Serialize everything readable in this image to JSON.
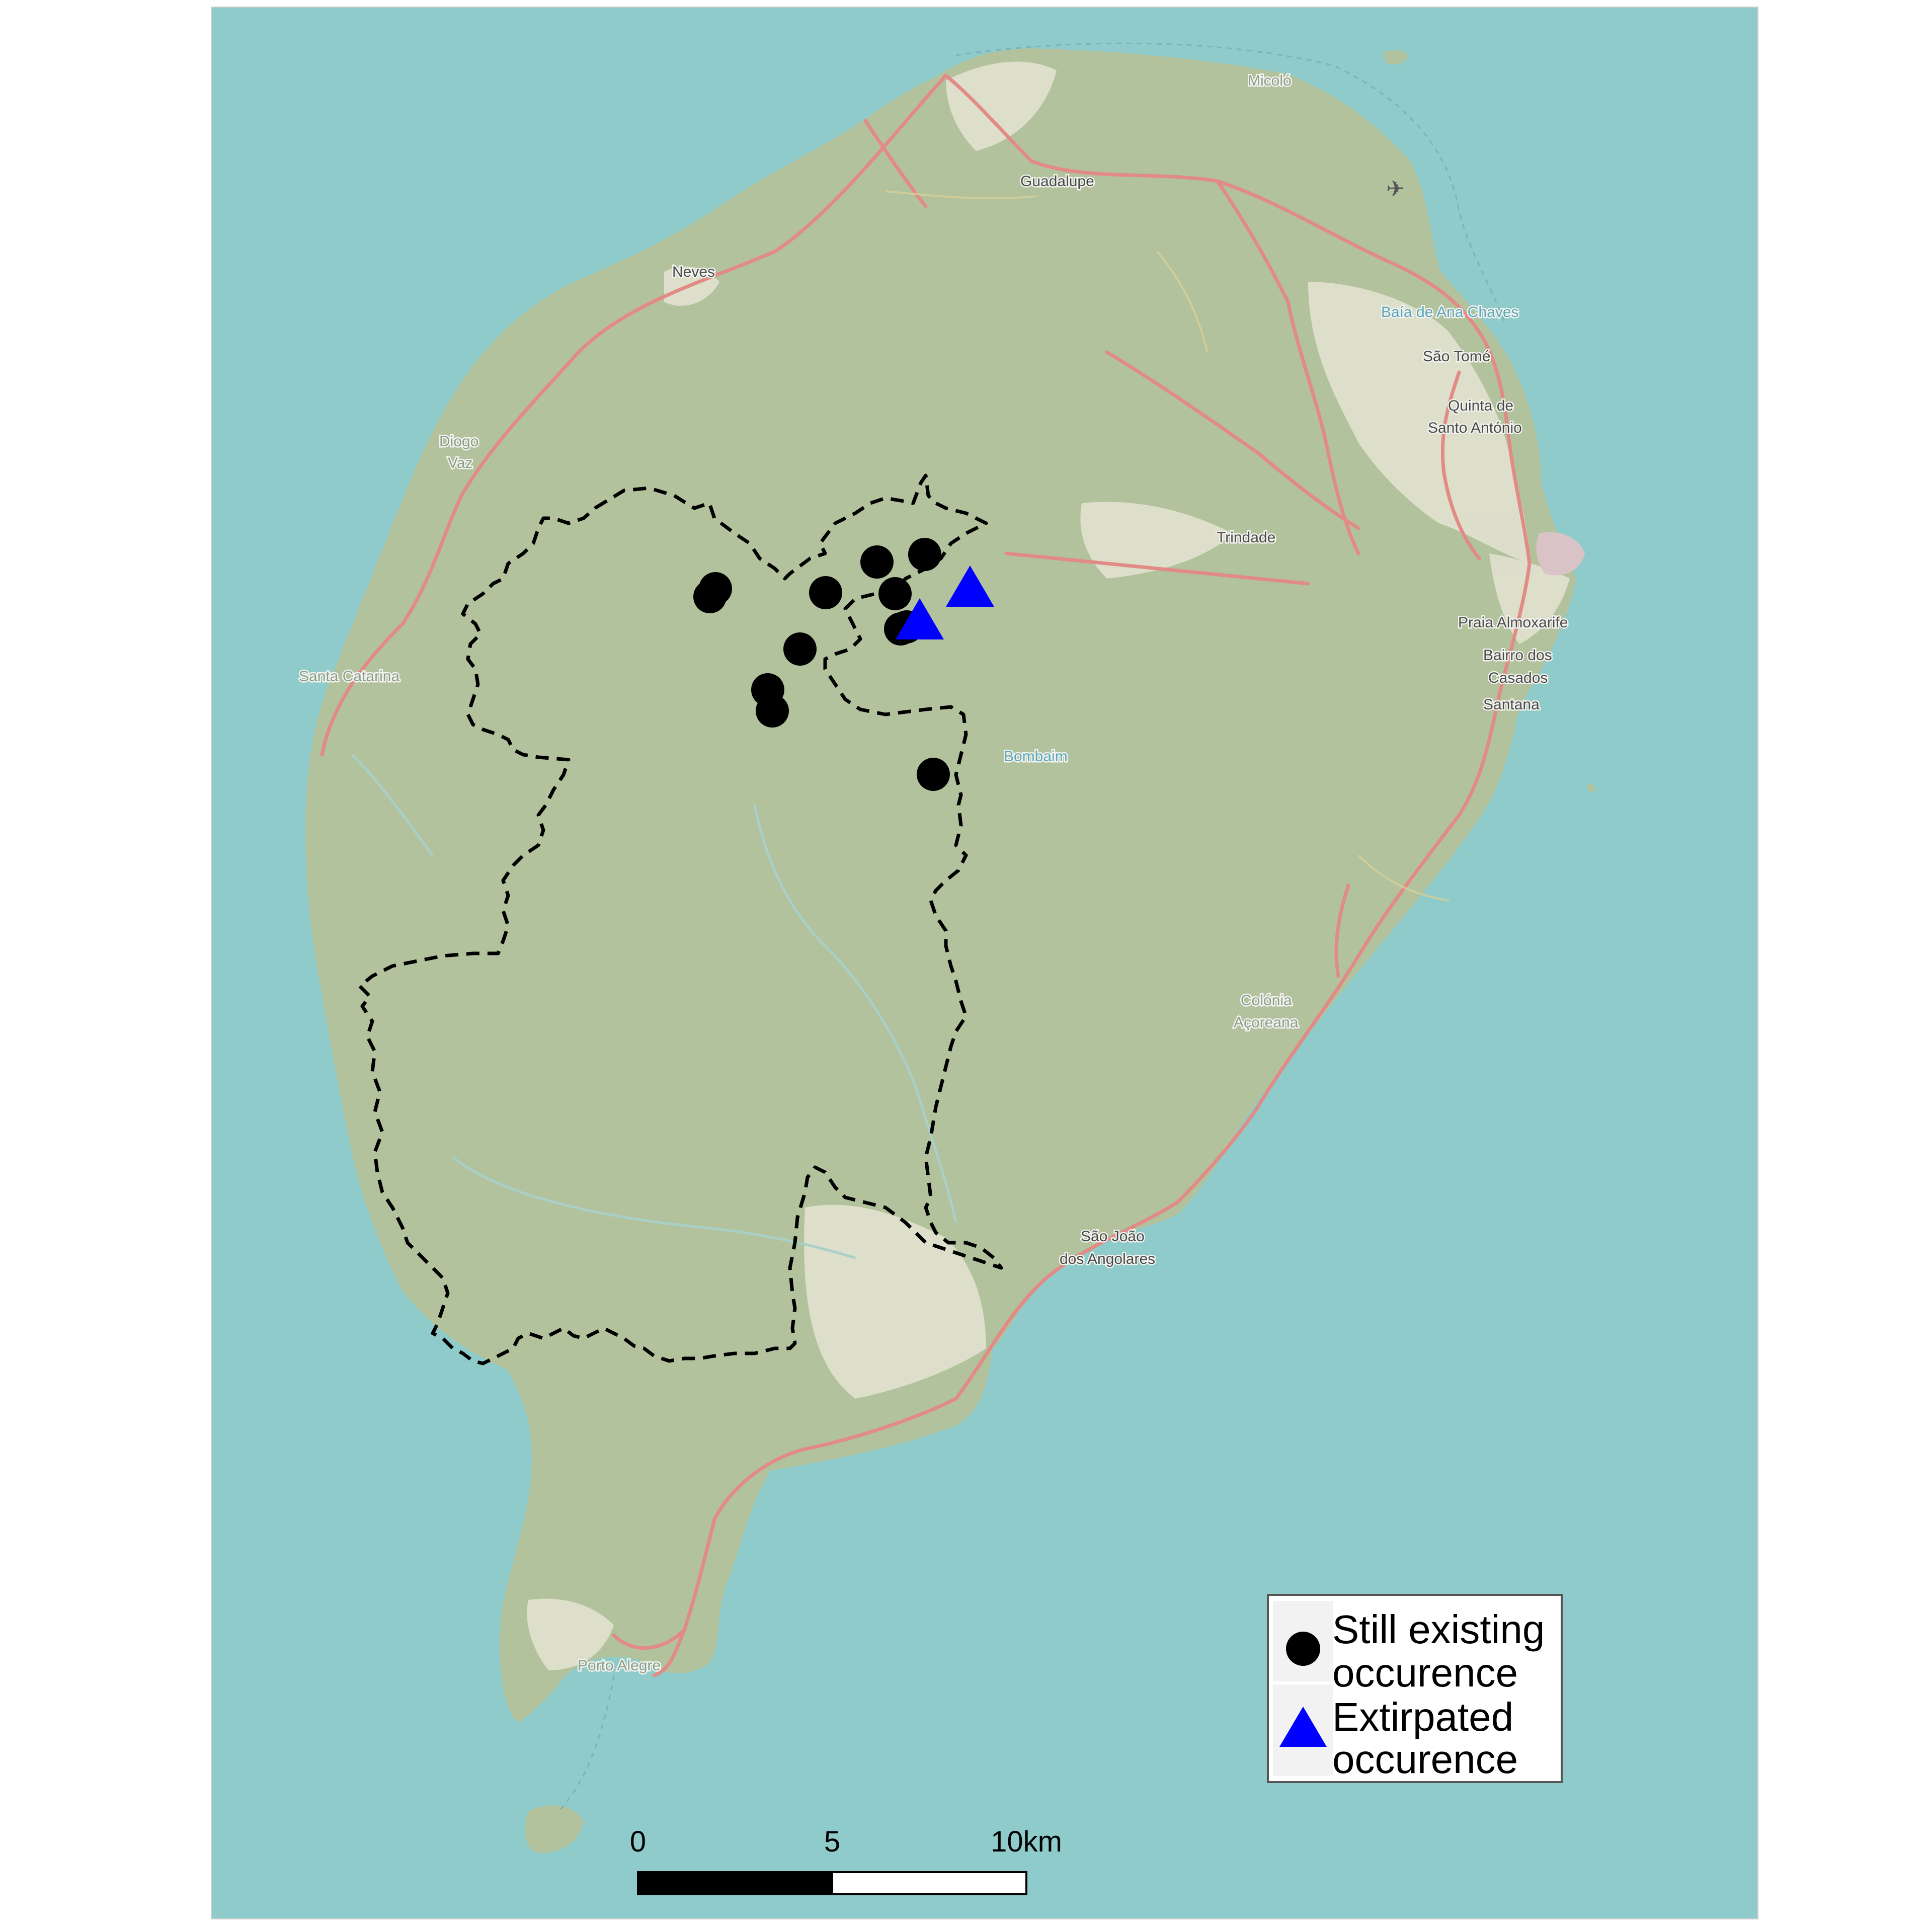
{
  "map": {
    "colors": {
      "sea": "#8fcbcb",
      "land": "#b2c29c",
      "urban": "#e8e4d8",
      "road": "#e28a85",
      "boundary": "#000000",
      "still_existing": "#000000",
      "extirpated": "#0000ff"
    },
    "place_labels": [
      {
        "id": "micolo",
        "text": "Micoló"
      },
      {
        "id": "guadalupe",
        "text": "Guadalupe"
      },
      {
        "id": "neves",
        "text": "Neves"
      },
      {
        "id": "baia",
        "text": "Baía de Ana Chaves"
      },
      {
        "id": "sao-tome",
        "text": "São Tomé"
      },
      {
        "id": "quinta-1",
        "text": "Quinta de"
      },
      {
        "id": "quinta-2",
        "text": "Santo António"
      },
      {
        "id": "diogo-1",
        "text": "Diogo"
      },
      {
        "id": "diogo-2",
        "text": "Vaz"
      },
      {
        "id": "trindade",
        "text": "Trindade"
      },
      {
        "id": "praia",
        "text": "Praia Almoxarife"
      },
      {
        "id": "bairro-1",
        "text": "Bairro dos"
      },
      {
        "id": "bairro-2",
        "text": "Casados"
      },
      {
        "id": "santana",
        "text": "Santana"
      },
      {
        "id": "santa-catarina",
        "text": "Santa Catarina"
      },
      {
        "id": "bombaim",
        "text": "Bombaim"
      },
      {
        "id": "colonia-1",
        "text": "Colónia"
      },
      {
        "id": "colonia-2",
        "text": "Açoreana"
      },
      {
        "id": "sao-joao-1",
        "text": "São João"
      },
      {
        "id": "sao-joao-2",
        "text": "dos Angolares"
      },
      {
        "id": "porto-alegre",
        "text": "Porto Alegre"
      }
    ],
    "occurrences": {
      "still_existing_count": 12,
      "extirpated_count": 2
    }
  },
  "legend": {
    "still_existing_line1": "Still existing",
    "still_existing_line2": "occurence",
    "extirpated_line1": "Extirpated",
    "extirpated_line2": "occurence"
  },
  "scale_bar": {
    "label_0": "0",
    "label_5": "5",
    "label_10": "10km"
  }
}
